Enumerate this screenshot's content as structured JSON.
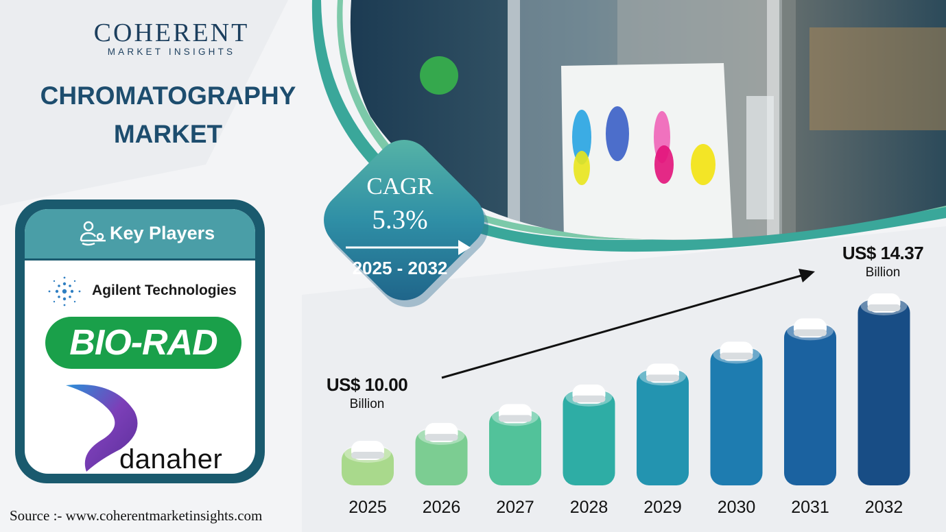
{
  "brand": {
    "name": "COHERENT",
    "sub": "MARKET INSIGHTS"
  },
  "title_line1": "CHROMATOGRAPHY",
  "title_line2": "MARKET",
  "key_players": {
    "heading": "Key Players",
    "companies": [
      "Agilent Technologies",
      "BIO-RAD",
      "danaher"
    ]
  },
  "cagr": {
    "label": "CAGR",
    "value": "5.3%",
    "period": "2025 - 2032"
  },
  "start_value": {
    "amount": "US$ 10.00",
    "unit": "Billion"
  },
  "end_value": {
    "amount": "US$ 14.37",
    "unit": "Billion"
  },
  "source": "Source :-  www.coherentmarketinsights.com",
  "chart_data": {
    "type": "bar",
    "categories": [
      "2025",
      "2026",
      "2027",
      "2028",
      "2029",
      "2030",
      "2031",
      "2032"
    ],
    "values": [
      10.0,
      10.53,
      11.09,
      11.67,
      12.29,
      12.94,
      13.63,
      14.37
    ],
    "annotations": [
      "US$ 10.00 Billion",
      "US$ 14.37 Billion",
      "CAGR 5.3%",
      "2025 - 2032"
    ],
    "colors": [
      "#a9d98c",
      "#7ccd92",
      "#52c29a",
      "#2eada5",
      "#2394b0",
      "#1e7cb0",
      "#1b62a0",
      "#184d85"
    ]
  }
}
